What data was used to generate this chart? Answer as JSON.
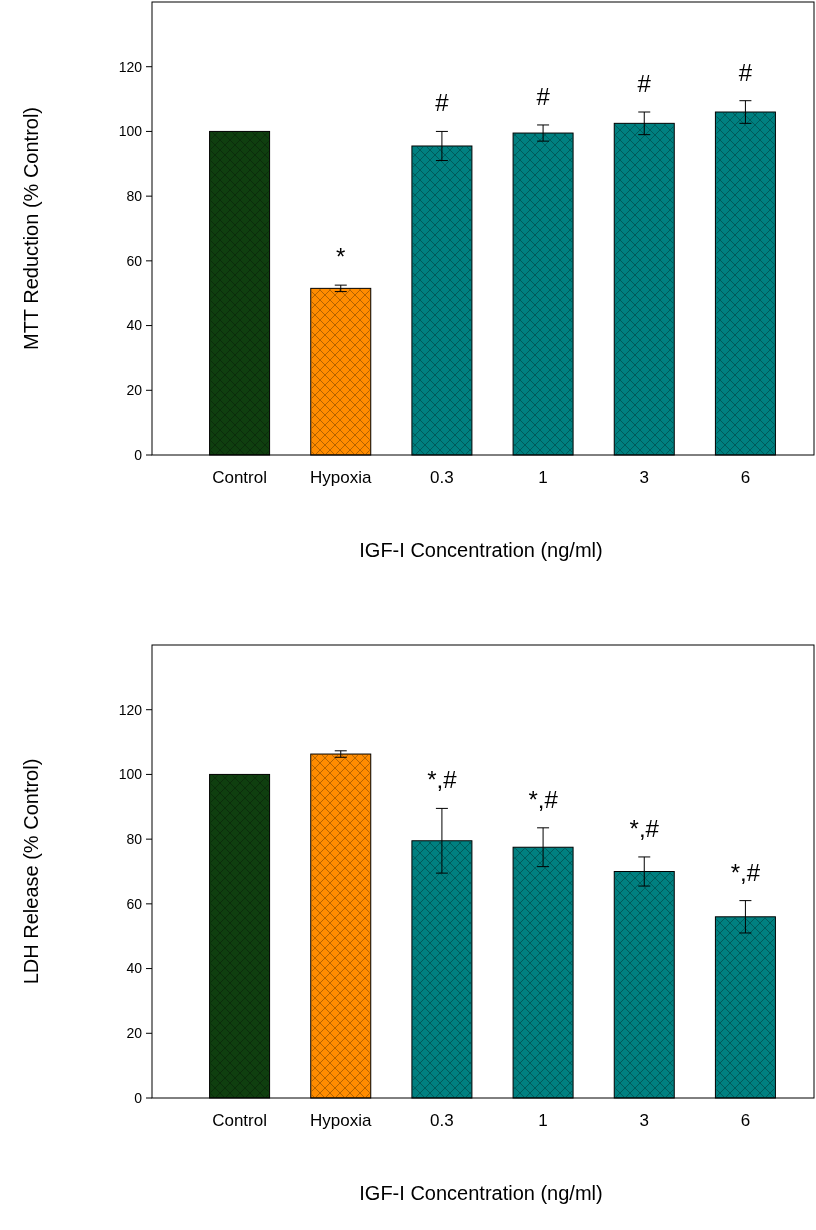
{
  "chart_data": [
    {
      "type": "bar",
      "xlabel": "IGF-I Concentration (ng/ml)",
      "ylabel": "MTT Reduction (% Control)",
      "categories": [
        "Control",
        "Hypoxia",
        "0.3",
        "1",
        "3",
        "6"
      ],
      "values": [
        100,
        51.5,
        95.5,
        99.5,
        102.5,
        106
      ],
      "errors": [
        null,
        1,
        4.5,
        2.5,
        3.5,
        3.5
      ],
      "colors": [
        "#0f3f0f",
        "#ff8c00",
        "#008080",
        "#008080",
        "#008080",
        "#008080"
      ],
      "ylim": [
        0,
        140
      ],
      "yticks": [
        0,
        20,
        40,
        60,
        80,
        100,
        120
      ],
      "annotations": [
        "*",
        "#",
        "#",
        "#",
        "#"
      ]
    },
    {
      "type": "bar",
      "xlabel": "IGF-I Concentration (ng/ml)",
      "ylabel": "LDH Release (% Control)",
      "categories": [
        "Control",
        "Hypoxia",
        "0.3",
        "1",
        "3",
        "6"
      ],
      "values": [
        100,
        106.3,
        79.5,
        77.5,
        70,
        56
      ],
      "errors": [
        null,
        1,
        10,
        6,
        4.5,
        5
      ],
      "colors": [
        "#0f3f0f",
        "#ff8c00",
        "#008080",
        "#008080",
        "#008080",
        "#008080"
      ],
      "ylim": [
        0,
        140
      ],
      "yticks": [
        0,
        20,
        40,
        60,
        80,
        100,
        120
      ],
      "annotations": [
        "*,#",
        "*,#",
        "*,#",
        "*,#"
      ]
    }
  ]
}
